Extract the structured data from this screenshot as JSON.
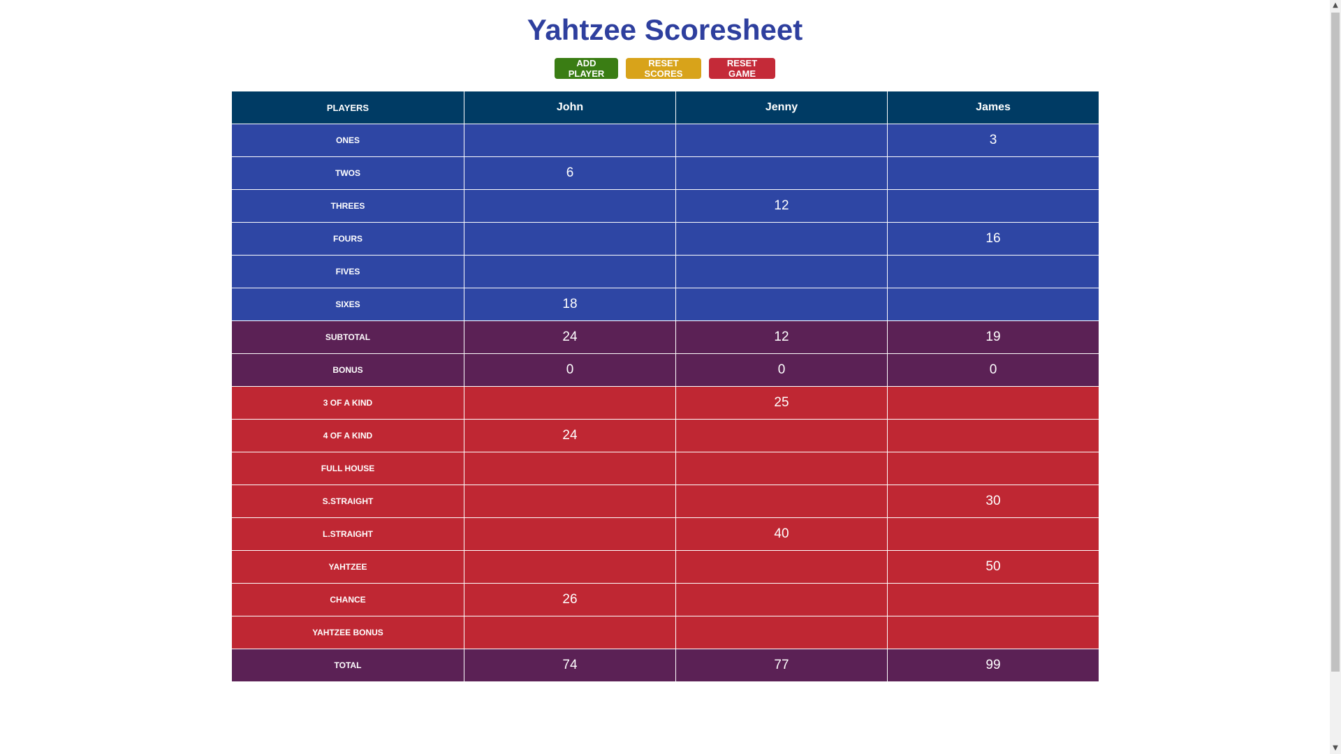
{
  "title": "Yahtzee Scoresheet",
  "buttons": {
    "add_player": "ADD PLAYER",
    "reset_scores": "RESET SCORES",
    "reset_game": "RESET GAME"
  },
  "colors": {
    "title": "#2e3f9e",
    "add_player": "#3a7d14",
    "reset_scores": "#d8a31a",
    "reset_game": "#c42a38",
    "header": "#003b64",
    "upper": "#2e46a4",
    "summary": "#5b2155",
    "lower": "#bf2733"
  },
  "table": {
    "corner_label": "PLAYERS",
    "players": [
      "John",
      "Jenny",
      "James"
    ],
    "rows": [
      {
        "label": "ONES",
        "section": "upper",
        "scores": [
          "",
          "",
          "3"
        ]
      },
      {
        "label": "TWOS",
        "section": "upper",
        "scores": [
          "6",
          "",
          ""
        ]
      },
      {
        "label": "THREES",
        "section": "upper",
        "scores": [
          "",
          "12",
          ""
        ]
      },
      {
        "label": "FOURS",
        "section": "upper",
        "scores": [
          "",
          "",
          "16"
        ]
      },
      {
        "label": "FIVES",
        "section": "upper",
        "scores": [
          "",
          "",
          ""
        ]
      },
      {
        "label": "SIXES",
        "section": "upper",
        "scores": [
          "18",
          "",
          ""
        ]
      },
      {
        "label": "SUBTOTAL",
        "section": "summary",
        "scores": [
          "24",
          "12",
          "19"
        ]
      },
      {
        "label": "BONUS",
        "section": "summary",
        "scores": [
          "0",
          "0",
          "0"
        ]
      },
      {
        "label": "3 OF A KIND",
        "section": "lower",
        "scores": [
          "",
          "25",
          ""
        ]
      },
      {
        "label": "4 OF A KIND",
        "section": "lower",
        "scores": [
          "24",
          "",
          ""
        ]
      },
      {
        "label": "FULL HOUSE",
        "section": "lower",
        "scores": [
          "",
          "",
          ""
        ]
      },
      {
        "label": "S.STRAIGHT",
        "section": "lower",
        "scores": [
          "",
          "",
          "30"
        ]
      },
      {
        "label": "L.STRAIGHT",
        "section": "lower",
        "scores": [
          "",
          "40",
          ""
        ]
      },
      {
        "label": "YAHTZEE",
        "section": "lower",
        "scores": [
          "",
          "",
          "50"
        ]
      },
      {
        "label": "CHANCE",
        "section": "lower",
        "scores": [
          "26",
          "",
          ""
        ]
      },
      {
        "label": "YAHTZEE BONUS",
        "section": "lower",
        "scores": [
          "",
          "",
          ""
        ]
      },
      {
        "label": "TOTAL",
        "section": "summary",
        "scores": [
          "74",
          "77",
          "99"
        ]
      }
    ]
  },
  "scrollbar": {
    "up_icon": "▲",
    "down_icon": "▼"
  }
}
